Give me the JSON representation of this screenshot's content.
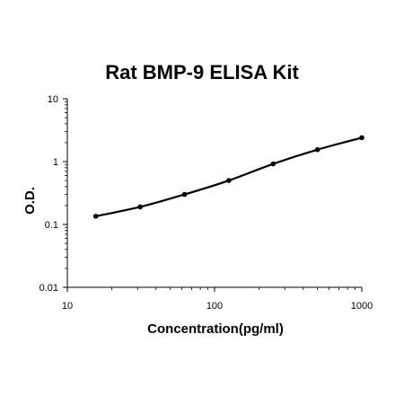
{
  "chart_data": {
    "type": "line",
    "title": "Rat BMP-9 ELISA Kit",
    "xlabel": "Concentration(pg/ml)",
    "ylabel": "O.D.",
    "x_scale": "log",
    "y_scale": "log",
    "xlim": [
      10,
      1000
    ],
    "ylim": [
      0.01,
      10
    ],
    "x_ticks": [
      "10",
      "100",
      "1000"
    ],
    "y_ticks": [
      "0.01",
      "0.1",
      "1",
      "10"
    ],
    "grid": false,
    "legend": "none",
    "series": [
      {
        "x": [
          15.6,
          31.25,
          62.5,
          125,
          250,
          500,
          1000
        ],
        "y": [
          0.135,
          0.19,
          0.3,
          0.5,
          0.92,
          1.55,
          2.4
        ]
      }
    ],
    "colors": {
      "line": "#000000",
      "marker": "#000000"
    }
  }
}
